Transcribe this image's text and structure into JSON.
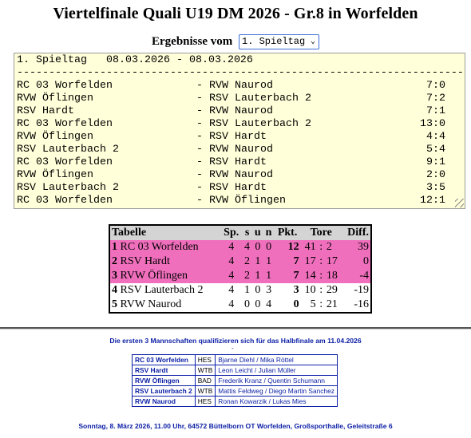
{
  "title": "Viertelfinale Quali U19 DM 2026 - Gr.8 in Worfelden",
  "round_selector": {
    "label": "Ergebnisse vom",
    "selected": "1. Spieltag"
  },
  "results": {
    "header": "1. Spieltag   08.03.2026 - 08.03.2026",
    "divider": "--------------------------------------------------------------------------",
    "matches": [
      {
        "home": "RC 03 Worfelden",
        "sep": "-",
        "away": "RVW Naurod",
        "score": "7:0"
      },
      {
        "home": "RVW Öflingen",
        "sep": "-",
        "away": "RSV Lauterbach 2",
        "score": "7:2"
      },
      {
        "home": "RSV Hardt",
        "sep": "-",
        "away": "RVW Naurod",
        "score": "7:1"
      },
      {
        "home": "RC 03 Worfelden",
        "sep": "-",
        "away": "RSV Lauterbach 2",
        "score": "13:0"
      },
      {
        "home": "RVW Öflingen",
        "sep": "-",
        "away": "RSV Hardt",
        "score": "4:4"
      },
      {
        "home": "RSV Lauterbach 2",
        "sep": "-",
        "away": "RVW Naurod",
        "score": "5:4"
      },
      {
        "home": "RC 03 Worfelden",
        "sep": "-",
        "away": "RSV Hardt",
        "score": "9:1"
      },
      {
        "home": "RVW Öflingen",
        "sep": "-",
        "away": "RVW Naurod",
        "score": "2:0"
      },
      {
        "home": "RSV Lauterbach 2",
        "sep": "-",
        "away": "RSV Hardt",
        "score": "3:5"
      },
      {
        "home": "RC 03 Worfelden",
        "sep": "-",
        "away": "RVW Öflingen",
        "score": "12:1"
      }
    ]
  },
  "standings": {
    "headers": {
      "table": "Tabelle",
      "sp": "Sp.",
      "s": "s",
      "u": "u",
      "n": "n",
      "pkt": "Pkt.",
      "tore": "Tore",
      "diff": "Diff."
    },
    "rows": [
      {
        "rank": "1",
        "team": "RC 03 Worfelden",
        "sp": "4",
        "s": "4",
        "u": "0",
        "n": "0",
        "pkt": "12",
        "tf": "41",
        "tc": "2",
        "diff": "39"
      },
      {
        "rank": "2",
        "team": "RSV Hardt",
        "sp": "4",
        "s": "2",
        "u": "1",
        "n": "1",
        "pkt": "7",
        "tf": "17",
        "tc": "17",
        "diff": "0"
      },
      {
        "rank": "3",
        "team": "RVW Öflingen",
        "sp": "4",
        "s": "2",
        "u": "1",
        "n": "1",
        "pkt": "7",
        "tf": "14",
        "tc": "18",
        "diff": "-4"
      },
      {
        "rank": "4",
        "team": "RSV Lauterbach 2",
        "sp": "4",
        "s": "1",
        "u": "0",
        "n": "3",
        "pkt": "3",
        "tf": "10",
        "tc": "29",
        "diff": "-19"
      },
      {
        "rank": "5",
        "team": "RVW Naurod",
        "sp": "4",
        "s": "0",
        "u": "0",
        "n": "4",
        "pkt": "0",
        "tf": "5",
        "tc": "21",
        "diff": "-16"
      }
    ]
  },
  "qualification_note": "Die ersten 3 Mannschaften qualifizieren sich für das Halbfinale am 11.04.2026",
  "dash": "-",
  "teams": [
    {
      "team": "RC 03 Worfelden",
      "state": "HES",
      "players": "Bjarne Diehl / Mika Röttel"
    },
    {
      "team": "RSV Hardt",
      "state": "WTB",
      "players": "Leon Leicht / Julian Müller"
    },
    {
      "team": "RVW Öflingen",
      "state": "BAD",
      "players": "Frederik Kranz / Quentin Schumann"
    },
    {
      "team": "RSV Lauterbach 2",
      "state": "WTB",
      "players": "Mattis Feldweg / Diego Martin Sanchez"
    },
    {
      "team": "RVW Naurod",
      "state": "HES",
      "players": "Ronan Kowarzik / Lukas Mies"
    }
  ],
  "venue": "Sonntag, 8. März 2026, 11.00 Uhr, 64572 Büttelborn OT Worfelden, Großsporthalle, Geleitstraße 6",
  "colors": {
    "qualified_row": "#f06fbd",
    "results_bg": "#ffffd9",
    "blue_text": "#0b1ea6",
    "header_bg": "#d4d4d4"
  }
}
